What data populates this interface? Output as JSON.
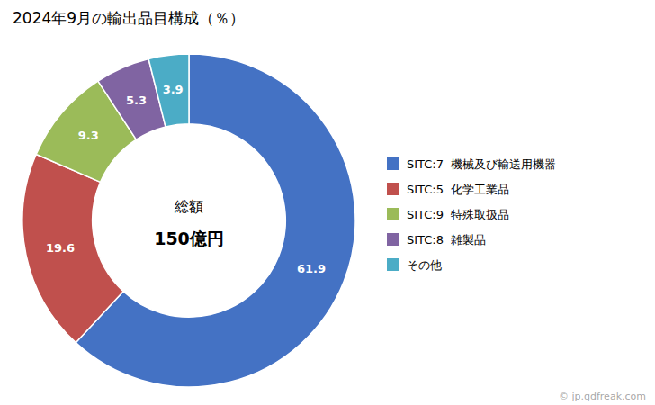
{
  "chart_data": {
    "type": "pie",
    "title": "2024年9月の輸出品目構成（％）",
    "categories": [
      "SITC:7  機械及び輸送用機器",
      "SITC:5  化学工業品",
      "SITC:9  特殊取扱品",
      "SITC:8  雑製品",
      "その他"
    ],
    "values": [
      61.9,
      19.6,
      9.3,
      5.3,
      3.9
    ],
    "colors": [
      "#4472C4",
      "#C0504D",
      "#9BBB59",
      "#8064A2",
      "#4BACC6"
    ],
    "annotations": [
      "総額",
      "150億円",
      "© jp.gdfreak.com"
    ],
    "data_labels": true,
    "legend": "right"
  }
}
